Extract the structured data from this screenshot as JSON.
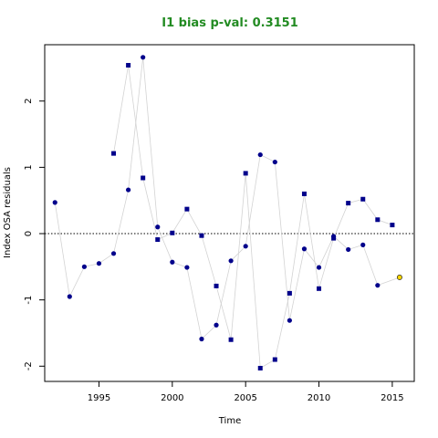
{
  "chart_data": {
    "type": "scatter",
    "title": "I1 bias p-val: 0.3151",
    "title_color": "#228B22",
    "xlabel": "Time",
    "ylabel": "Index OSA residuals",
    "xlim": [
      1991.3,
      2016.5
    ],
    "ylim": [
      -2.23,
      2.85
    ],
    "x_ticks": [
      1995,
      2000,
      2005,
      2010,
      2015
    ],
    "y_ticks": [
      -2,
      -1,
      0,
      1,
      2
    ],
    "reference_line_y": 0,
    "grid": false,
    "line_color": "#d3d3d3",
    "point_color": "#00008B",
    "highlight_color": "#FFD700",
    "series": [
      {
        "marker": "circle",
        "points": [
          [
            1992,
            0.47
          ],
          [
            1993,
            -0.95
          ],
          [
            1994,
            -0.5
          ],
          [
            1995,
            -0.45
          ],
          [
            1996,
            -0.3
          ],
          [
            1997,
            0.66
          ],
          [
            1998,
            2.66
          ],
          [
            1999,
            0.1
          ],
          [
            2000,
            -0.43
          ],
          [
            2001,
            -0.51
          ],
          [
            2002,
            -1.59
          ],
          [
            2003,
            -1.38
          ],
          [
            2004,
            -0.41
          ],
          [
            2005,
            -0.19
          ],
          [
            2006,
            1.19
          ],
          [
            2007,
            1.08
          ],
          [
            2008,
            -1.31
          ],
          [
            2009,
            -0.23
          ],
          [
            2010,
            -0.51
          ],
          [
            2011,
            -0.04
          ],
          [
            2012,
            -0.24
          ],
          [
            2013,
            -0.17
          ],
          [
            2014,
            -0.78
          ]
        ],
        "highlight_point": [
          2015.5,
          -0.66
        ]
      },
      {
        "marker": "square",
        "points": [
          [
            1996,
            1.21
          ],
          [
            1997,
            2.54
          ],
          [
            1998,
            0.84
          ],
          [
            1999,
            -0.09
          ],
          [
            2000,
            0.01
          ],
          [
            2001,
            0.37
          ],
          [
            2002,
            -0.03
          ],
          [
            2003,
            -0.79
          ],
          [
            2004,
            -1.6
          ],
          [
            2005,
            0.91
          ],
          [
            2006,
            -2.03
          ],
          [
            2007,
            -1.9
          ],
          [
            2008,
            -0.9
          ],
          [
            2009,
            0.6
          ],
          [
            2010,
            -0.83
          ],
          [
            2011,
            -0.07
          ],
          [
            2012,
            0.46
          ],
          [
            2013,
            0.52
          ],
          [
            2014,
            0.21
          ],
          [
            2015,
            0.13
          ]
        ]
      }
    ]
  }
}
